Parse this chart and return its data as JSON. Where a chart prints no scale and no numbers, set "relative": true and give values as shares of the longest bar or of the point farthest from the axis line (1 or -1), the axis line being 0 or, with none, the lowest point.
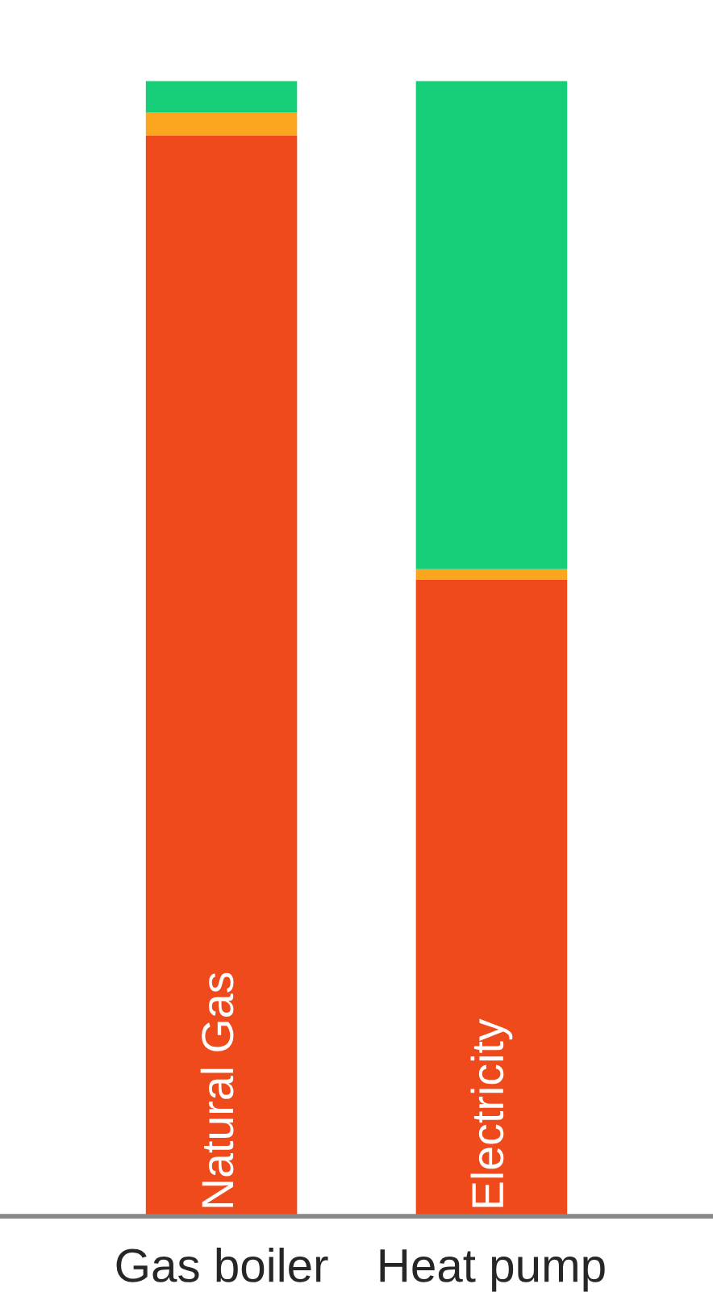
{
  "chart_data": {
    "type": "bar",
    "stacked": true,
    "relative": true,
    "categories": [
      "Gas boiler",
      "Heat pump"
    ],
    "series": [
      {
        "color": "#ee4a1b",
        "values": [
          0.952,
          0.561
        ]
      },
      {
        "color": "#fba61e",
        "values": [
          0.02,
          0.009
        ]
      },
      {
        "color": "#17ce78",
        "values": [
          0.028,
          0.43
        ]
      }
    ],
    "annotations": [
      "Natural Gas",
      "Electricity"
    ],
    "legend": false
  }
}
